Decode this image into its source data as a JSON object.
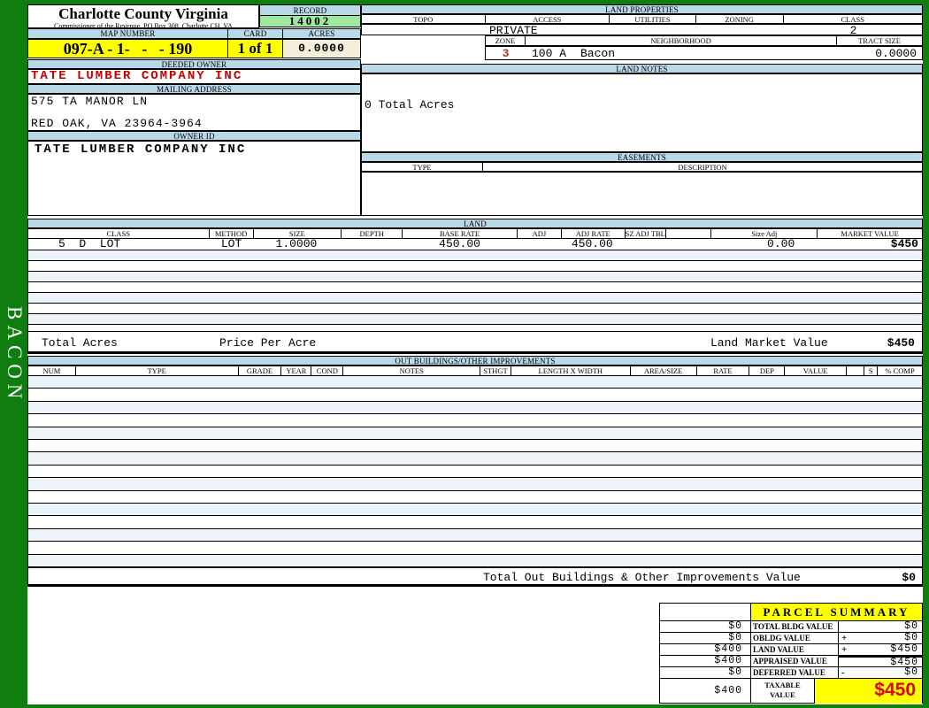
{
  "app": {
    "vertical_label": "BACON"
  },
  "header": {
    "county": "Charlotte County Virginia",
    "commissioner": "Commissioner of the Revenue, PO Box 308, Charlotte CH, VA",
    "record_label": "RECORD",
    "record_value": "14002",
    "map_number_label": "MAP NUMBER",
    "map_number_value": "097-A - 1-   -   - 190",
    "card_label": "CARD",
    "card_value": "1 of 1",
    "acres_label": "ACRES",
    "acres_value": "0.0000"
  },
  "owner": {
    "deeded_owner_label": "DEEDED OWNER",
    "deeded_owner": "TATE LUMBER COMPANY INC",
    "mailing_address_label": "MAILING ADDRESS",
    "address_line1": "575 TA MANOR LN",
    "address_line2": "RED OAK, VA 23964-3964",
    "owner_id_label": "OWNER ID",
    "owner_id": "TATE LUMBER COMPANY INC"
  },
  "land_properties": {
    "title": "LAND PROPERTIES",
    "headers": [
      "TOPO",
      "ACCESS",
      "UTILITIES",
      "ZONING",
      "CLASS"
    ],
    "access_value": "PRIVATE",
    "class_value": "2",
    "zone_label": "ZONE",
    "neighborhood_label": "NEIGHBORHOOD",
    "tract_size_label": "TRACT SIZE",
    "zone_value": "3",
    "neighborhood_code": "100 A",
    "neighborhood_name": "Bacon",
    "tract_size_value": "0.0000"
  },
  "land_notes": {
    "title": "LAND NOTES",
    "note": "0 Total Acres"
  },
  "easements": {
    "title": "EASEMENTS",
    "type_label": "TYPE",
    "description_label": "DESCRIPTION"
  },
  "land": {
    "title": "LAND",
    "columns": [
      "CLASS",
      "METHOD",
      "SIZE",
      "DEPTH",
      "BASE RATE",
      "ADJ",
      "ADJ RATE",
      "SZ ADJ TBL",
      "",
      "Size Adj",
      "MARKET VALUE"
    ],
    "row_cells": [
      "5  D  LOT",
      "LOT",
      "1.0000",
      "",
      "450.00",
      "",
      "450.00",
      "",
      "",
      "0.00",
      "$450"
    ],
    "empty_row_count": 7,
    "total_acres_label": "Total Acres",
    "price_per_acre_label": "Price Per Acre",
    "land_market_value_label": "Land Market Value",
    "land_market_value": "$450"
  },
  "out_buildings": {
    "title": "OUT BUILDINGS/OTHER IMPROVEMENTS",
    "columns": [
      "NUM",
      "TYPE",
      "GRADE",
      "YEAR",
      "COND",
      "NOTES",
      "STHGT",
      "LENGTH X WIDTH",
      "AREA/SIZE",
      "RATE",
      "DEP",
      "VALUE",
      "",
      "S",
      "% COMP"
    ],
    "empty_row_count": 15,
    "total_label": "Total Out Buildings & Other Improvements Value",
    "total_value": "$0"
  },
  "parcel_summary": {
    "title": "PARCEL SUMMARY",
    "rows": [
      {
        "left": "$0",
        "label": "TOTAL BLDG VALUE",
        "op": "",
        "value": "$0"
      },
      {
        "left": "$0",
        "label": "OBLDG VALUE",
        "op": "+",
        "value": "$0"
      },
      {
        "left": "$400",
        "label": "LAND VALUE",
        "op": "+",
        "value": "$450"
      },
      {
        "left": "$400",
        "label": "APPRAISED VALUE",
        "op": "",
        "value": "$450"
      },
      {
        "left": "$0",
        "label": "DEFERRED VALUE",
        "op": "-",
        "value": "$0"
      }
    ],
    "taxable_left": "$400",
    "taxable_label_line1": "TAXABLE",
    "taxable_label_line2": "VALUE",
    "taxable_value": "$450"
  },
  "colors": {
    "page_green": "#0f7d0f",
    "header_blue": "#b9d9e8",
    "record_green": "#9fe89f",
    "highlight_yellow": "#ffff00",
    "acres_cream": "#f3efda",
    "owner_red": "#c80000",
    "zone_red": "#a63434",
    "taxable_red": "#e00000",
    "stripe_blue": "#eef2f9"
  }
}
